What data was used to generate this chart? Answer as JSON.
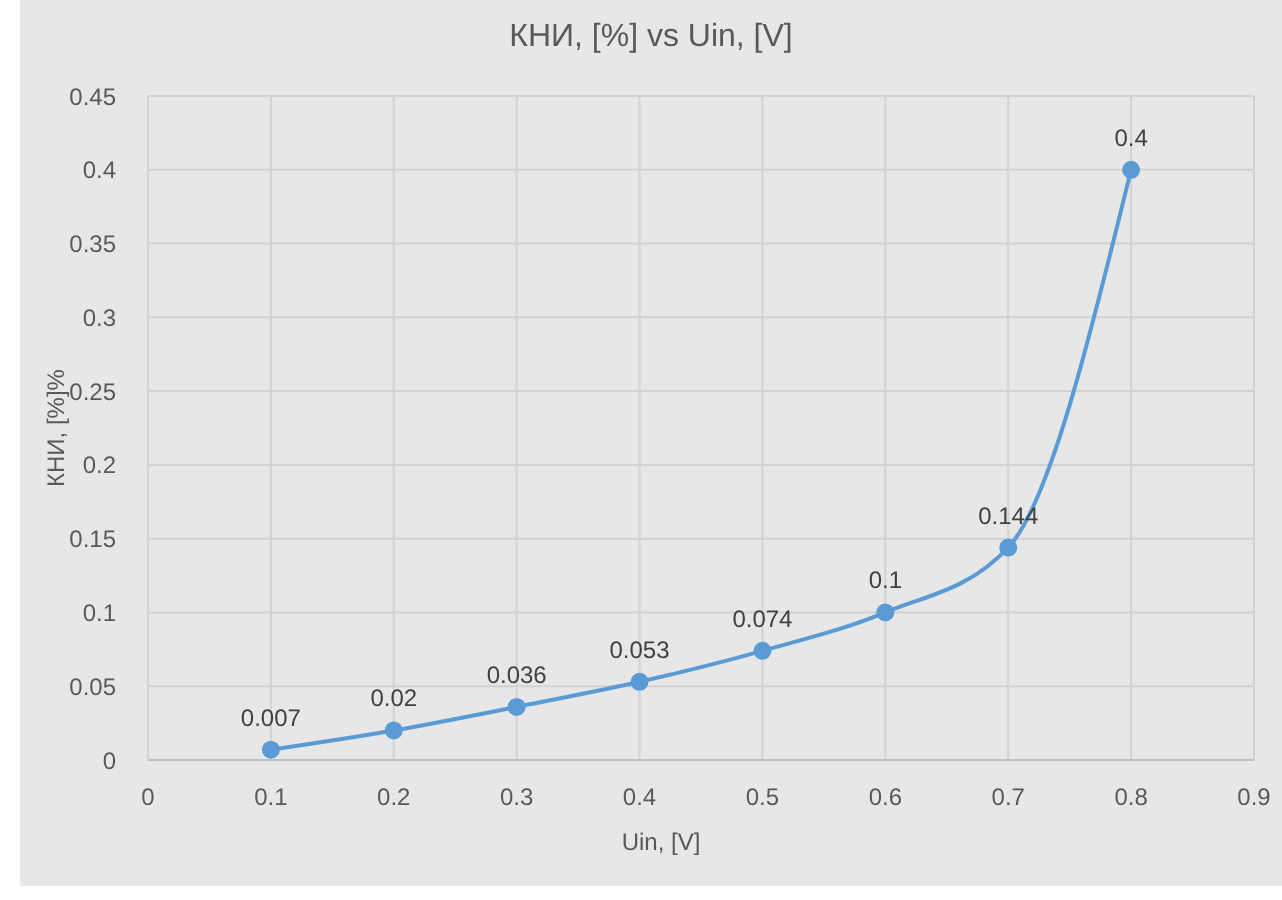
{
  "chart_data": {
    "type": "line",
    "title": "КНИ, [%] vs Uin, [V]",
    "xlabel": "Uin, [V]",
    "ylabel": "КНИ, [%]%",
    "x": [
      0.1,
      0.2,
      0.3,
      0.4,
      0.5,
      0.6,
      0.7,
      0.8
    ],
    "series": [
      {
        "color": "#5b9bd5",
        "values": [
          0.007,
          0.02,
          0.036,
          0.053,
          0.074,
          0.1,
          0.144,
          0.4
        ]
      }
    ],
    "xlim": [
      0,
      0.9
    ],
    "xticks": [
      0,
      0.1,
      0.2,
      0.3,
      0.4,
      0.5,
      0.6,
      0.7,
      0.8,
      0.9
    ],
    "ylim": [
      0,
      0.45
    ],
    "yticks": [
      0,
      0.05,
      0.1,
      0.15,
      0.2,
      0.25,
      0.3,
      0.35,
      0.4,
      0.45
    ],
    "grid": true,
    "marker": "circle",
    "data_labels": true
  }
}
